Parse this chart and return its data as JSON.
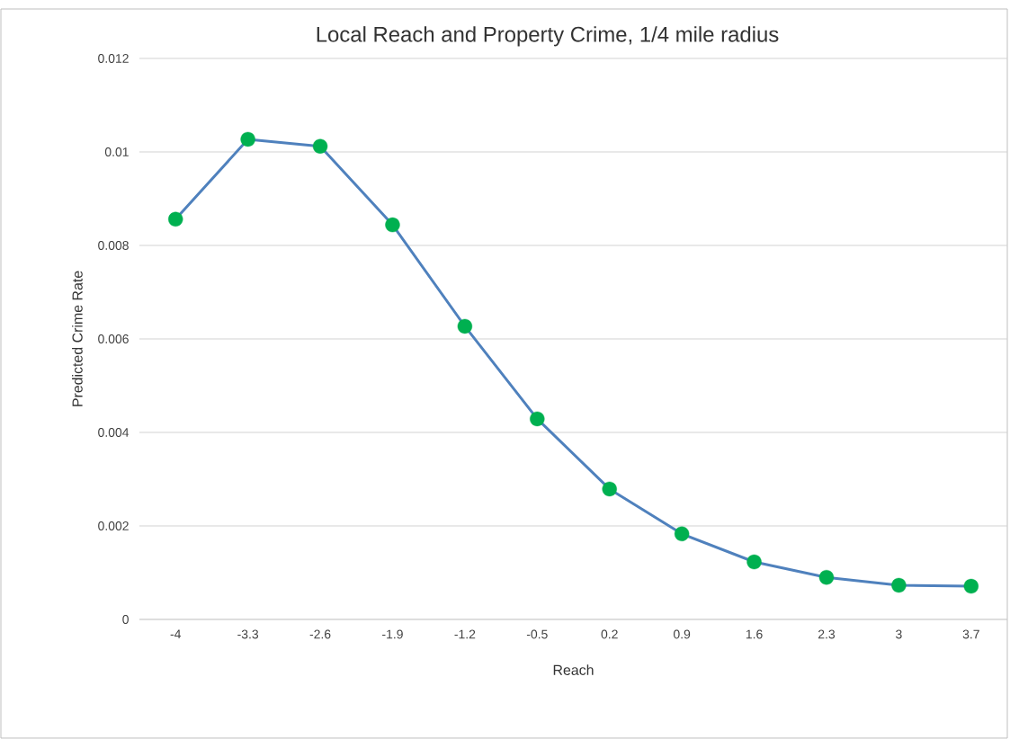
{
  "chart_data": {
    "type": "line",
    "title": "Local Reach and Property Crime, 1/4 mile radius",
    "xlabel": "Reach",
    "ylabel": "Predicted Crime Rate",
    "categories": [
      "-4",
      "-3.3",
      "-2.6",
      "-1.9",
      "-1.2",
      "-0.5",
      "0.2",
      "0.9",
      "1.6",
      "2.3",
      "3",
      "3.7"
    ],
    "series": [
      {
        "color": "#4f81bd",
        "colors": [
          "#00b050",
          "#00b050",
          "#00b050",
          "#00b050",
          "#00b050",
          "#00b050",
          "#00b050",
          "#00b050",
          "#00b050",
          "#00b050",
          "#00b050",
          "#00b050"
        ],
        "values": [
          0.00856,
          0.01027,
          0.01012,
          0.00844,
          0.00627,
          0.00429,
          0.00279,
          0.00183,
          0.00123,
          0.0009,
          0.00073,
          0.00071
        ]
      }
    ],
    "ylim": [
      0,
      0.012
    ],
    "yticks": [
      0,
      0.002,
      0.004,
      0.006,
      0.008,
      0.01,
      0.012
    ],
    "grid": "y",
    "marker": "circle",
    "line_style": "solid"
  }
}
